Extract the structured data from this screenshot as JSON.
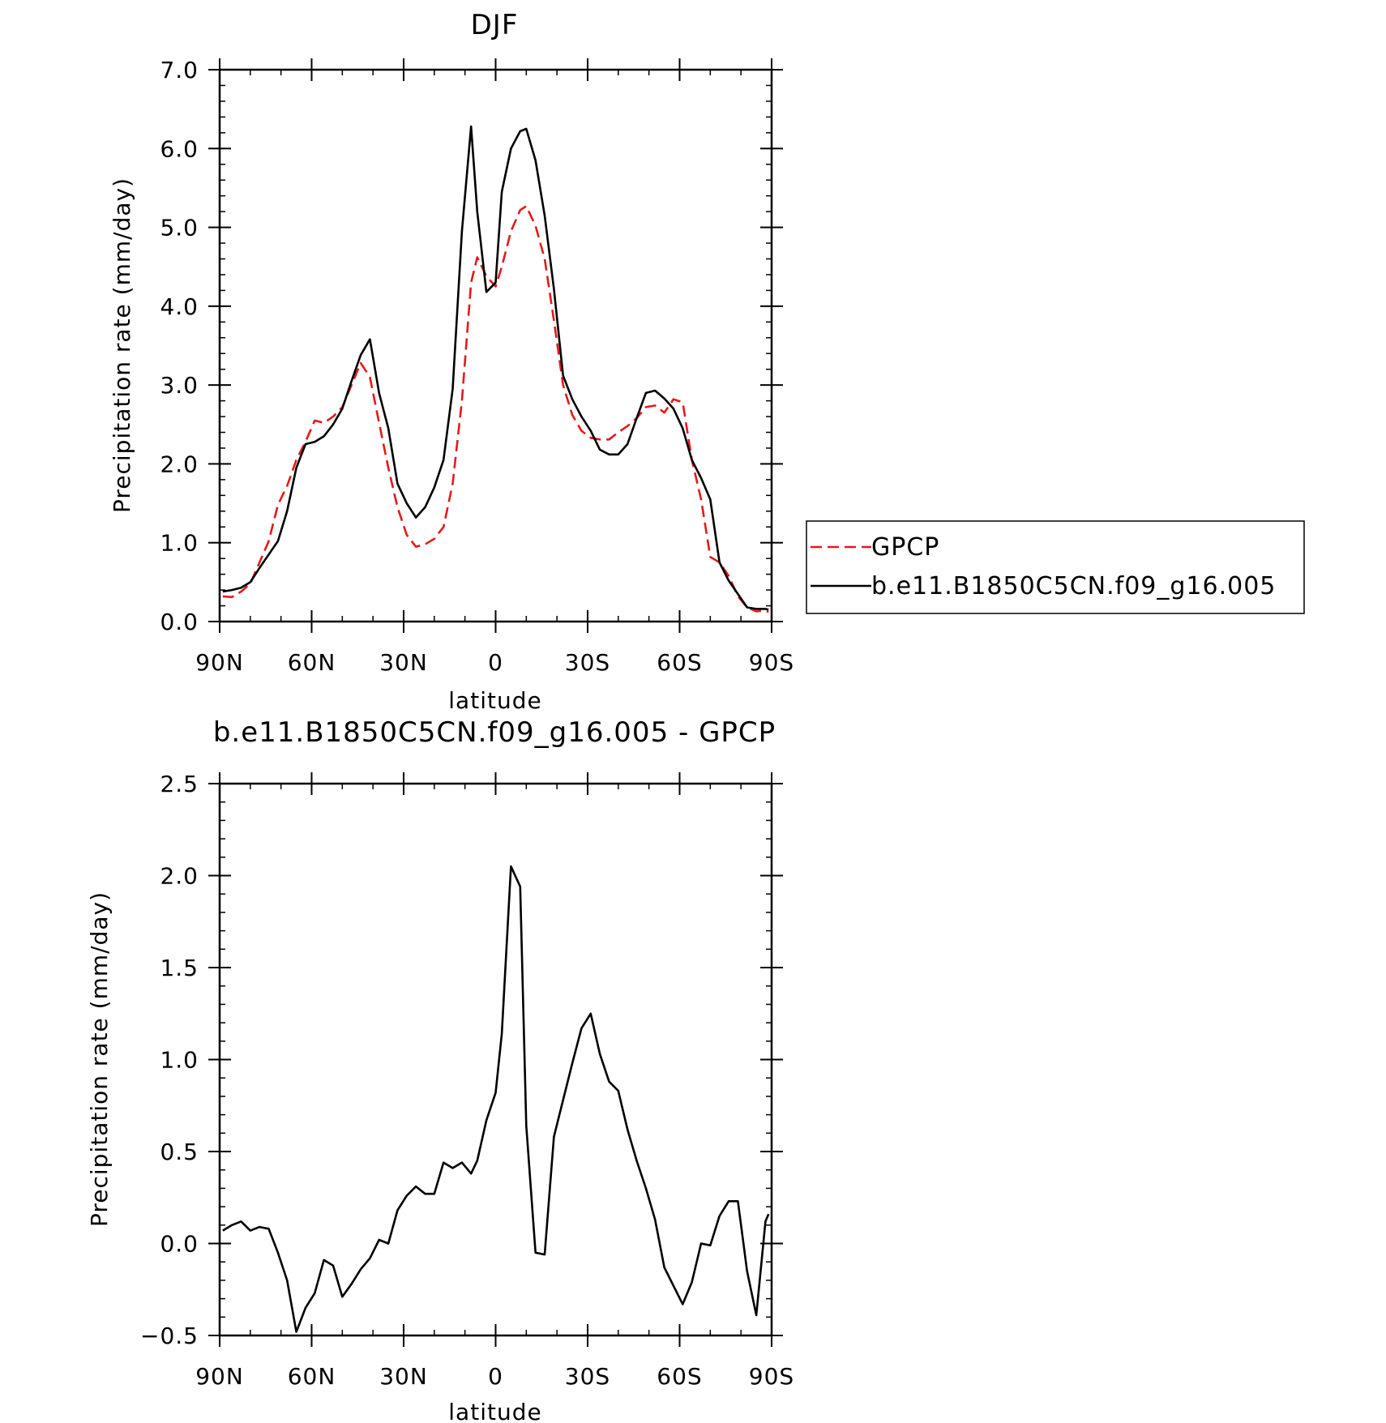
{
  "colors": {
    "model": "#000000",
    "obs": "#e31a1c",
    "axes": "#000000",
    "background": "#ffffff"
  },
  "chart_data": [
    {
      "type": "line",
      "title": "DJF",
      "xlabel": "latitude",
      "ylabel": "Precipitation rate (mm/day)",
      "xlim": [
        90,
        -90
      ],
      "ylim": [
        0,
        7
      ],
      "x_ticks": [
        {
          "value": 90,
          "label": "90N"
        },
        {
          "value": 60,
          "label": "60N"
        },
        {
          "value": 30,
          "label": "30N"
        },
        {
          "value": 0,
          "label": "0"
        },
        {
          "value": -30,
          "label": "30S"
        },
        {
          "value": -60,
          "label": "60S"
        },
        {
          "value": -90,
          "label": "90S"
        }
      ],
      "y_ticks": [
        {
          "value": 0,
          "label": "0.0"
        },
        {
          "value": 1,
          "label": "1.0"
        },
        {
          "value": 2,
          "label": "2.0"
        },
        {
          "value": 3,
          "label": "3.0"
        },
        {
          "value": 4,
          "label": "4.0"
        },
        {
          "value": 5,
          "label": "5.0"
        },
        {
          "value": 6,
          "label": "6.0"
        },
        {
          "value": 7,
          "label": "7.0"
        }
      ],
      "legend_position": "right",
      "series": [
        {
          "name": "GPCP",
          "style": "dashed",
          "color": "#e31a1c",
          "x": [
            89,
            86,
            83,
            80,
            77,
            74,
            71,
            68,
            65,
            62,
            59,
            56,
            53,
            50,
            47,
            44,
            41,
            38,
            35,
            32,
            29,
            26,
            23,
            20,
            17,
            14,
            11,
            8,
            6,
            3,
            0,
            -2,
            -5,
            -8,
            -10,
            -13,
            -16,
            -19,
            -22,
            -25,
            -28,
            -31,
            -34,
            -37,
            -40,
            -43,
            -46,
            -49,
            -52,
            -55,
            -58,
            -61,
            -64,
            -67,
            -70,
            -73,
            -76,
            -79,
            -82,
            -85,
            -88,
            -89
          ],
          "values": [
            0.32,
            0.31,
            0.38,
            0.48,
            0.75,
            1.02,
            1.48,
            1.72,
            2.05,
            2.28,
            2.55,
            2.52,
            2.6,
            2.72,
            3.0,
            3.28,
            3.1,
            2.52,
            1.95,
            1.45,
            1.1,
            0.95,
            0.98,
            1.05,
            1.2,
            1.75,
            2.8,
            4.3,
            4.62,
            4.38,
            4.25,
            4.5,
            4.95,
            5.22,
            5.27,
            5.02,
            4.6,
            3.82,
            3.0,
            2.62,
            2.42,
            2.33,
            2.31,
            2.31,
            2.4,
            2.48,
            2.58,
            2.72,
            2.74,
            2.65,
            2.82,
            2.78,
            2.05,
            1.55,
            0.82,
            0.75,
            0.58,
            0.32,
            0.18,
            0.13,
            0.14,
            0.12
          ]
        },
        {
          "name": "b.e11.B1850C5CN.f09_g16.005",
          "style": "solid",
          "color": "#000000",
          "x": [
            89,
            86,
            83,
            80,
            77,
            74,
            71,
            68,
            65,
            62,
            59,
            56,
            53,
            50,
            47,
            44,
            41,
            38,
            35,
            32,
            29,
            26,
            23,
            20,
            17,
            14,
            11,
            8,
            6,
            3,
            0,
            -2,
            -5,
            -8,
            -10,
            -13,
            -16,
            -19,
            -22,
            -25,
            -28,
            -31,
            -34,
            -37,
            -40,
            -43,
            -46,
            -49,
            -52,
            -55,
            -58,
            -61,
            -64,
            -67,
            -70,
            -73,
            -76,
            -79,
            -82,
            -85,
            -88,
            -89
          ],
          "values": [
            0.38,
            0.4,
            0.43,
            0.5,
            0.68,
            0.85,
            1.02,
            1.4,
            1.95,
            2.25,
            2.28,
            2.35,
            2.5,
            2.7,
            3.05,
            3.38,
            3.58,
            2.9,
            2.45,
            1.75,
            1.5,
            1.32,
            1.45,
            1.7,
            2.05,
            2.95,
            4.95,
            6.28,
            5.2,
            4.18,
            4.3,
            5.45,
            6.0,
            6.22,
            6.25,
            5.85,
            5.15,
            4.22,
            3.12,
            2.82,
            2.6,
            2.42,
            2.18,
            2.12,
            2.12,
            2.25,
            2.58,
            2.9,
            2.93,
            2.83,
            2.7,
            2.45,
            2.05,
            1.82,
            1.55,
            0.75,
            0.52,
            0.35,
            0.18,
            0.16,
            0.16,
            0.15
          ]
        }
      ]
    },
    {
      "type": "line",
      "title": "b.e11.B1850C5CN.f09_g16.005 - GPCP",
      "xlabel": "latitude",
      "ylabel": "Precipitation rate (mm/day)",
      "xlim": [
        90,
        -90
      ],
      "ylim": [
        -0.5,
        2.5
      ],
      "x_ticks": [
        {
          "value": 90,
          "label": "90N"
        },
        {
          "value": 60,
          "label": "60N"
        },
        {
          "value": 30,
          "label": "30N"
        },
        {
          "value": 0,
          "label": "0"
        },
        {
          "value": -30,
          "label": "30S"
        },
        {
          "value": -60,
          "label": "60S"
        },
        {
          "value": -90,
          "label": "90S"
        }
      ],
      "y_ticks": [
        {
          "value": -0.5,
          "label": "−0.5"
        },
        {
          "value": 0,
          "label": "0.0"
        },
        {
          "value": 0.5,
          "label": "0.5"
        },
        {
          "value": 1,
          "label": "1.0"
        },
        {
          "value": 1.5,
          "label": "1.5"
        },
        {
          "value": 2,
          "label": "2.0"
        },
        {
          "value": 2.5,
          "label": "2.5"
        }
      ],
      "series": [
        {
          "style": "solid",
          "color": "#000000",
          "x": [
            89,
            86,
            83,
            80,
            77,
            74,
            71,
            68,
            65,
            62,
            59,
            56,
            53,
            50,
            47,
            44,
            41,
            38,
            35,
            32,
            29,
            26,
            23,
            20,
            17,
            14,
            11,
            8,
            6,
            3,
            0,
            -2,
            -5,
            -8,
            -10,
            -13,
            -16,
            -19,
            -22,
            -25,
            -28,
            -31,
            -34,
            -37,
            -40,
            -43,
            -46,
            -49,
            -52,
            -55,
            -58,
            -61,
            -64,
            -67,
            -70,
            -73,
            -76,
            -79,
            -82,
            -85,
            -88,
            -89
          ],
          "values": [
            0.07,
            0.1,
            0.12,
            0.07,
            0.09,
            0.08,
            -0.05,
            -0.2,
            -0.48,
            -0.35,
            -0.27,
            -0.09,
            -0.12,
            -0.29,
            -0.22,
            -0.14,
            -0.08,
            0.02,
            0.0,
            0.18,
            0.26,
            0.31,
            0.27,
            0.27,
            0.44,
            0.41,
            0.44,
            0.38,
            0.45,
            0.67,
            0.82,
            1.14,
            2.05,
            1.94,
            0.64,
            -0.05,
            -0.06,
            0.58,
            0.78,
            0.98,
            1.17,
            1.25,
            1.03,
            0.88,
            0.83,
            0.62,
            0.45,
            0.3,
            0.13,
            -0.13,
            -0.23,
            -0.33,
            -0.21,
            0.0,
            -0.01,
            0.15,
            0.23,
            0.23,
            -0.15,
            -0.39,
            0.12,
            0.16
          ]
        }
      ]
    }
  ]
}
